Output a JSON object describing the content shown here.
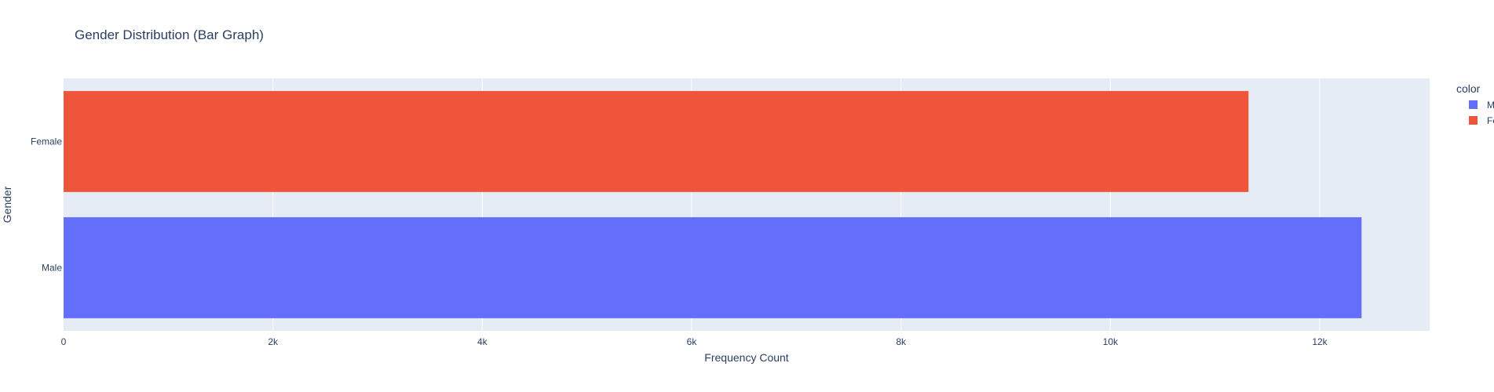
{
  "chart_data": {
    "type": "bar",
    "orientation": "horizontal",
    "title": "Gender Distribution (Bar Graph)",
    "xlabel": "Frequency Count",
    "ylabel": "Gender",
    "xlim": [
      0,
      13050
    ],
    "x_ticks": [
      0,
      2000,
      4000,
      6000,
      8000,
      10000,
      12000
    ],
    "x_tick_labels": [
      "0",
      "2k",
      "4k",
      "6k",
      "8k",
      "10k",
      "12k"
    ],
    "categories": [
      "Male",
      "Female"
    ],
    "series": [
      {
        "name": "Male",
        "category": "Male",
        "value": 12400,
        "color": "#636efa"
      },
      {
        "name": "Female",
        "category": "Female",
        "value": 11320,
        "color": "#ef553b"
      }
    ],
    "grid": true,
    "plot_background": "#e5ecf6",
    "legend": {
      "title": "color",
      "placement": "top-right",
      "entries": [
        {
          "label": "Male",
          "color": "#636efa"
        },
        {
          "label": "Female",
          "color": "#ef553b"
        }
      ]
    }
  }
}
